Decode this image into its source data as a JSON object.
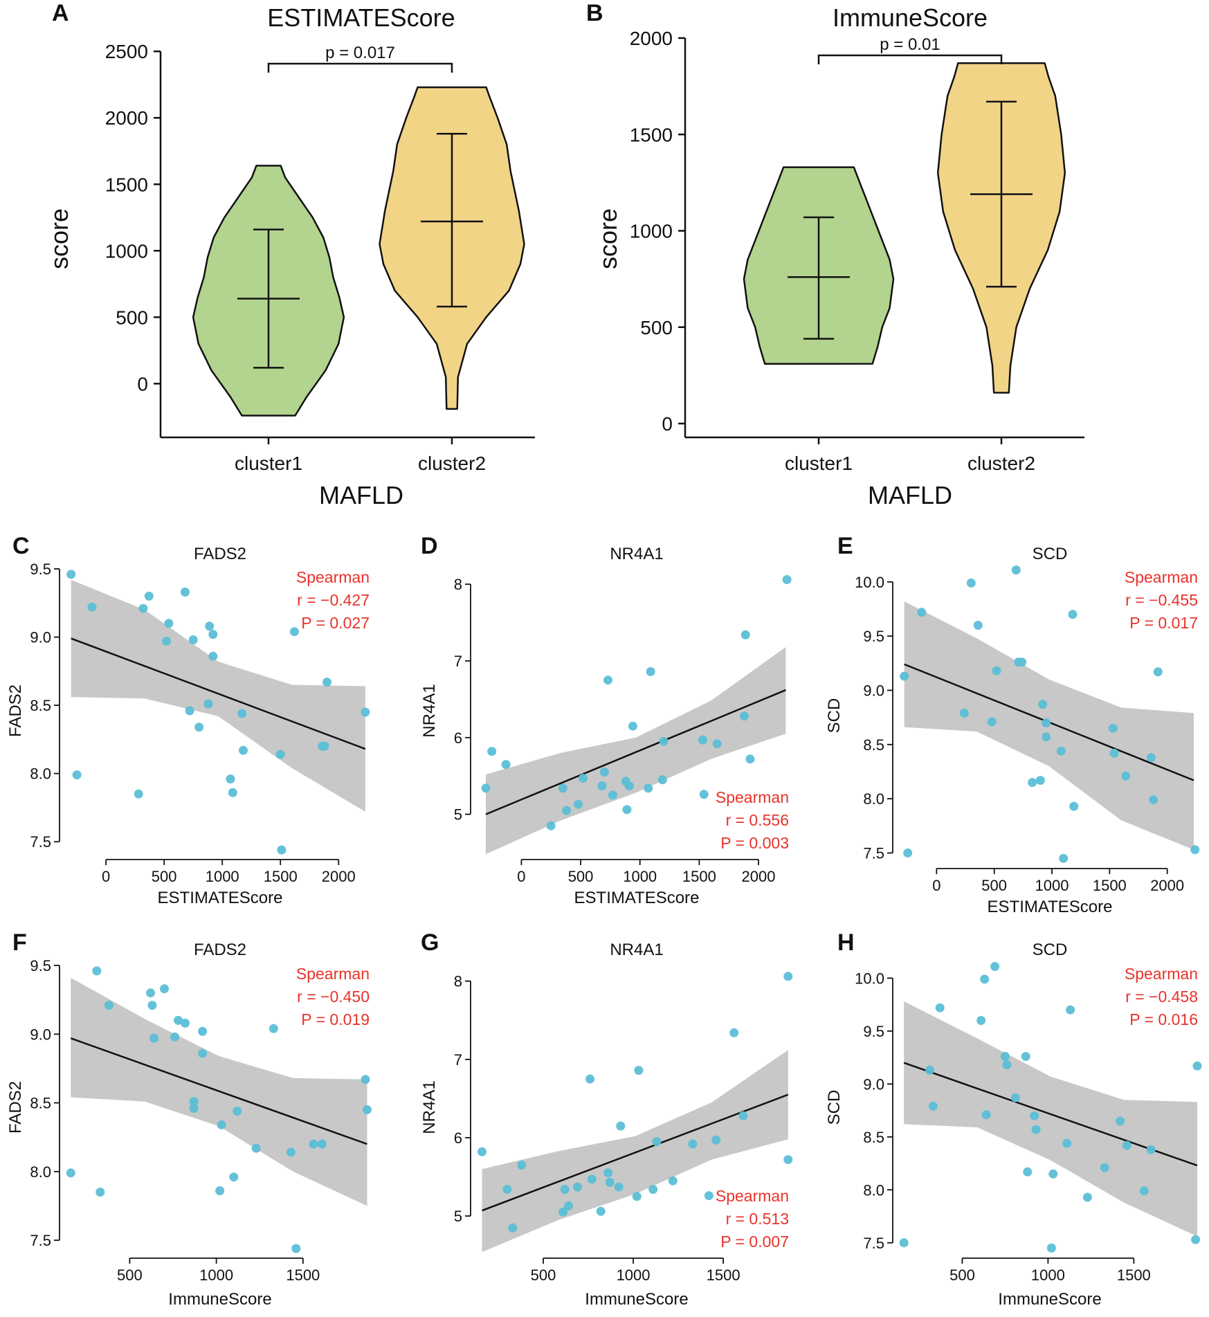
{
  "chart_data": [
    {
      "panel": "A",
      "type": "violin",
      "title": "ESTIMATEScore",
      "xlabel": "MAFLD",
      "ylabel": "score",
      "categories": [
        "cluster1",
        "cluster2"
      ],
      "ylim": [
        -300,
        2600
      ],
      "yticks": [
        0,
        500,
        1000,
        1500,
        2000,
        2500
      ],
      "colors": [
        "#b2d48e",
        "#f2d487"
      ],
      "groups": [
        {
          "name": "cluster1",
          "min": -240,
          "max": 1640,
          "mean": 640,
          "err_low": 120,
          "err_high": 1160,
          "profile": [
            [
              -240,
              0.35
            ],
            [
              -100,
              0.5
            ],
            [
              100,
              0.75
            ],
            [
              300,
              0.92
            ],
            [
              500,
              0.99
            ],
            [
              650,
              0.93
            ],
            [
              800,
              0.85
            ],
            [
              950,
              0.8
            ],
            [
              1100,
              0.72
            ],
            [
              1250,
              0.58
            ],
            [
              1400,
              0.4
            ],
            [
              1550,
              0.22
            ],
            [
              1640,
              0.16
            ]
          ]
        },
        {
          "name": "cluster2",
          "min": -190,
          "max": 2230,
          "mean": 1220,
          "err_low": 580,
          "err_high": 1880,
          "profile": [
            [
              -190,
              0.07
            ],
            [
              50,
              0.08
            ],
            [
              300,
              0.2
            ],
            [
              500,
              0.45
            ],
            [
              700,
              0.75
            ],
            [
              900,
              0.9
            ],
            [
              1050,
              0.95
            ],
            [
              1300,
              0.88
            ],
            [
              1600,
              0.77
            ],
            [
              1800,
              0.72
            ],
            [
              2000,
              0.6
            ],
            [
              2150,
              0.5
            ],
            [
              2230,
              0.45
            ]
          ]
        }
      ],
      "comparison": {
        "label": "p = 0.017",
        "between": [
          "cluster1",
          "cluster2"
        ]
      }
    },
    {
      "panel": "B",
      "type": "violin",
      "title": "ImmuneScore",
      "xlabel": "MAFLD",
      "ylabel": "score",
      "categories": [
        "cluster1",
        "cluster2"
      ],
      "ylim": [
        0,
        2000
      ],
      "yticks": [
        0,
        500,
        1000,
        1500,
        2000
      ],
      "colors": [
        "#b2d48e",
        "#f2d487"
      ],
      "groups": [
        {
          "name": "cluster1",
          "min": 310,
          "max": 1330,
          "mean": 760,
          "err_low": 440,
          "err_high": 1070,
          "profile": [
            [
              310,
              0.72
            ],
            [
              400,
              0.79
            ],
            [
              500,
              0.85
            ],
            [
              600,
              0.95
            ],
            [
              750,
              1.0
            ],
            [
              850,
              0.95
            ],
            [
              950,
              0.85
            ],
            [
              1050,
              0.75
            ],
            [
              1150,
              0.65
            ],
            [
              1250,
              0.55
            ],
            [
              1330,
              0.47
            ]
          ]
        },
        {
          "name": "cluster2",
          "min": 160,
          "max": 1870,
          "mean": 1190,
          "err_low": 710,
          "err_high": 1670,
          "profile": [
            [
              160,
              0.1
            ],
            [
              300,
              0.12
            ],
            [
              500,
              0.2
            ],
            [
              700,
              0.38
            ],
            [
              900,
              0.62
            ],
            [
              1100,
              0.78
            ],
            [
              1300,
              0.85
            ],
            [
              1500,
              0.8
            ],
            [
              1700,
              0.72
            ],
            [
              1800,
              0.63
            ],
            [
              1870,
              0.58
            ]
          ]
        }
      ],
      "comparison": {
        "label": "p = 0.01",
        "between": [
          "cluster1",
          "cluster2"
        ]
      }
    },
    {
      "panel": "C",
      "type": "scatter",
      "title": "FADS2",
      "xlabel": "ESTIMATEScore",
      "ylabel": "FADS2",
      "xlim": [
        -340,
        2290
      ],
      "ylim": [
        7.42,
        9.5
      ],
      "xticks": [
        0,
        500,
        1000,
        1500,
        2000
      ],
      "yticks": [
        7.5,
        8.0,
        8.5,
        9.0,
        9.5
      ],
      "ytick_labels": [
        "7.5",
        "8.0",
        "8.5",
        "9.0",
        "9.5"
      ],
      "stats": {
        "method": "Spearman",
        "r": "r = −0.427",
        "p": "P = 0.027",
        "position": "top-right"
      },
      "fit": {
        "x0": -300,
        "y0": 8.99,
        "x1": 2230,
        "y1": 8.18
      },
      "band": {
        "upper": [
          9.42,
          9.2,
          8.82,
          8.65,
          8.64
        ],
        "lower": [
          8.56,
          8.55,
          8.42,
          8.04,
          7.72
        ]
      },
      "points": [
        [
          -300,
          9.46
        ],
        [
          -250,
          7.99
        ],
        [
          -120,
          9.22
        ],
        [
          280,
          7.85
        ],
        [
          320,
          9.21
        ],
        [
          370,
          9.3
        ],
        [
          520,
          8.97
        ],
        [
          540,
          9.1
        ],
        [
          680,
          9.33
        ],
        [
          720,
          8.46
        ],
        [
          750,
          8.98
        ],
        [
          800,
          8.34
        ],
        [
          880,
          8.51
        ],
        [
          890,
          9.08
        ],
        [
          920,
          9.02
        ],
        [
          920,
          8.86
        ],
        [
          1070,
          7.96
        ],
        [
          1090,
          7.86
        ],
        [
          1170,
          8.44
        ],
        [
          1180,
          8.17
        ],
        [
          1500,
          8.14
        ],
        [
          1510,
          7.44
        ],
        [
          1620,
          9.04
        ],
        [
          1860,
          8.2
        ],
        [
          1880,
          8.2
        ],
        [
          1900,
          8.67
        ],
        [
          2230,
          8.45
        ]
      ]
    },
    {
      "panel": "D",
      "type": "scatter",
      "title": "NR4A1",
      "xlabel": "ESTIMATEScore",
      "ylabel": "NR4A1",
      "xlim": [
        -370,
        2280
      ],
      "ylim": [
        4.5,
        8.2
      ],
      "xticks": [
        0,
        500,
        1000,
        1500,
        2000
      ],
      "yticks": [
        5,
        6,
        7,
        8
      ],
      "ytick_labels": [
        "5",
        "6",
        "7",
        "8"
      ],
      "stats": {
        "method": "Spearman",
        "r": "r = 0.556",
        "p": "P = 0.003",
        "position": "bottom-right"
      },
      "fit": {
        "x0": -300,
        "y0": 5.0,
        "x1": 2230,
        "y1": 6.62
      },
      "band": {
        "upper": [
          5.52,
          5.8,
          6.0,
          6.48,
          7.18
        ],
        "lower": [
          4.48,
          4.92,
          5.28,
          5.72,
          6.05
        ]
      },
      "points": [
        [
          -300,
          5.34
        ],
        [
          -250,
          5.82
        ],
        [
          -130,
          5.65
        ],
        [
          250,
          4.85
        ],
        [
          350,
          5.34
        ],
        [
          380,
          5.05
        ],
        [
          480,
          5.13
        ],
        [
          520,
          5.47
        ],
        [
          680,
          5.37
        ],
        [
          700,
          5.55
        ],
        [
          730,
          6.75
        ],
        [
          770,
          5.25
        ],
        [
          880,
          5.43
        ],
        [
          890,
          5.06
        ],
        [
          910,
          5.37
        ],
        [
          940,
          6.15
        ],
        [
          1070,
          5.34
        ],
        [
          1090,
          6.86
        ],
        [
          1190,
          5.45
        ],
        [
          1200,
          5.95
        ],
        [
          1530,
          5.97
        ],
        [
          1540,
          5.26
        ],
        [
          1650,
          5.92
        ],
        [
          1880,
          6.28
        ],
        [
          1890,
          7.34
        ],
        [
          1930,
          5.72
        ],
        [
          2240,
          8.06
        ]
      ]
    },
    {
      "panel": "E",
      "type": "scatter",
      "title": "SCD",
      "xlabel": "ESTIMATEScore",
      "ylabel": "SCD",
      "xlim": [
        -320,
        2290
      ],
      "ylim": [
        7.42,
        10.12
      ],
      "xticks": [
        0,
        500,
        1000,
        1500,
        2000
      ],
      "yticks": [
        7.5,
        8.0,
        8.5,
        9.0,
        9.5,
        10.0
      ],
      "ytick_labels": [
        "7.5",
        "8.0",
        "8.5",
        "9.0",
        "9.5",
        "10.0"
      ],
      "stats": {
        "method": "Spearman",
        "r": "r = −0.455",
        "p": "P = 0.017",
        "position": "top-right"
      },
      "fit": {
        "x0": -280,
        "y0": 9.24,
        "x1": 2230,
        "y1": 8.17
      },
      "band": {
        "upper": [
          9.82,
          9.48,
          9.1,
          8.84,
          8.79
        ],
        "lower": [
          8.66,
          8.62,
          8.3,
          7.8,
          7.53
        ]
      },
      "points": [
        [
          -280,
          9.13
        ],
        [
          -250,
          7.5
        ],
        [
          -130,
          9.72
        ],
        [
          240,
          8.79
        ],
        [
          300,
          9.99
        ],
        [
          360,
          9.6
        ],
        [
          480,
          8.71
        ],
        [
          520,
          9.18
        ],
        [
          690,
          10.11
        ],
        [
          710,
          9.26
        ],
        [
          740,
          9.26
        ],
        [
          830,
          8.15
        ],
        [
          900,
          8.17
        ],
        [
          920,
          8.87
        ],
        [
          950,
          8.57
        ],
        [
          950,
          8.7
        ],
        [
          1080,
          8.44
        ],
        [
          1100,
          7.45
        ],
        [
          1180,
          9.7
        ],
        [
          1190,
          7.93
        ],
        [
          1530,
          8.65
        ],
        [
          1540,
          8.42
        ],
        [
          1640,
          8.21
        ],
        [
          1860,
          8.38
        ],
        [
          1880,
          7.99
        ],
        [
          1920,
          9.17
        ],
        [
          2240,
          7.53
        ]
      ]
    },
    {
      "panel": "F",
      "type": "scatter",
      "title": "FADS2",
      "xlabel": "ImmuneScore",
      "ylabel": "FADS2",
      "xlim": [
        135,
        1900
      ],
      "ylim": [
        7.42,
        9.5
      ],
      "xticks": [
        500,
        1000,
        1500
      ],
      "yticks": [
        7.5,
        8.0,
        8.5,
        9.0,
        9.5
      ],
      "ytick_labels": [
        "7.5",
        "8.0",
        "8.5",
        "9.0",
        "9.5"
      ],
      "stats": {
        "method": "Spearman",
        "r": "r = −0.450",
        "p": "P = 0.019",
        "position": "top-right"
      },
      "fit": {
        "x0": 160,
        "y0": 8.97,
        "x1": 1870,
        "y1": 8.2
      },
      "band": {
        "upper": [
          9.41,
          9.11,
          8.84,
          8.68,
          8.67
        ],
        "lower": [
          8.54,
          8.51,
          8.33,
          8.0,
          7.75
        ]
      },
      "points": [
        [
          160,
          7.99
        ],
        [
          310,
          9.46
        ],
        [
          330,
          7.85
        ],
        [
          380,
          9.21
        ],
        [
          620,
          9.3
        ],
        [
          630,
          9.21
        ],
        [
          640,
          8.97
        ],
        [
          700,
          9.33
        ],
        [
          760,
          8.98
        ],
        [
          780,
          9.1
        ],
        [
          820,
          9.08
        ],
        [
          870,
          8.51
        ],
        [
          870,
          8.46
        ],
        [
          920,
          8.86
        ],
        [
          920,
          9.02
        ],
        [
          1020,
          7.86
        ],
        [
          1030,
          8.34
        ],
        [
          1100,
          7.96
        ],
        [
          1120,
          8.44
        ],
        [
          1230,
          8.17
        ],
        [
          1330,
          9.04
        ],
        [
          1430,
          8.14
        ],
        [
          1460,
          7.44
        ],
        [
          1560,
          8.2
        ],
        [
          1610,
          8.2
        ],
        [
          1860,
          8.67
        ],
        [
          1870,
          8.45
        ]
      ]
    },
    {
      "panel": "G",
      "type": "scatter",
      "title": "NR4A1",
      "xlabel": "ImmuneScore",
      "ylabel": "NR4A1",
      "xlim": [
        135,
        1880
      ],
      "ylim": [
        4.55,
        8.2
      ],
      "xticks": [
        500,
        1000,
        1500
      ],
      "yticks": [
        5,
        6,
        7,
        8
      ],
      "ytick_labels": [
        "5",
        "6",
        "7",
        "8"
      ],
      "stats": {
        "method": "Spearman",
        "r": "r = 0.513",
        "p": "P = 0.007",
        "position": "bottom-right"
      },
      "fit": {
        "x0": 160,
        "y0": 5.07,
        "x1": 1860,
        "y1": 6.55
      },
      "band": {
        "upper": [
          5.6,
          5.83,
          6.02,
          6.45,
          7.12
        ],
        "lower": [
          4.54,
          4.95,
          5.28,
          5.72,
          5.98
        ]
      },
      "points": [
        [
          160,
          5.82
        ],
        [
          300,
          5.34
        ],
        [
          330,
          4.85
        ],
        [
          380,
          5.65
        ],
        [
          610,
          5.05
        ],
        [
          620,
          5.34
        ],
        [
          640,
          5.13
        ],
        [
          690,
          5.37
        ],
        [
          760,
          6.75
        ],
        [
          770,
          5.47
        ],
        [
          820,
          5.06
        ],
        [
          860,
          5.55
        ],
        [
          870,
          5.43
        ],
        [
          920,
          5.37
        ],
        [
          930,
          6.15
        ],
        [
          1020,
          5.25
        ],
        [
          1030,
          6.86
        ],
        [
          1110,
          5.34
        ],
        [
          1130,
          5.95
        ],
        [
          1220,
          5.45
        ],
        [
          1330,
          5.92
        ],
        [
          1420,
          5.26
        ],
        [
          1460,
          5.97
        ],
        [
          1560,
          7.34
        ],
        [
          1610,
          6.28
        ],
        [
          1860,
          5.72
        ],
        [
          1860,
          8.06
        ]
      ]
    },
    {
      "panel": "H",
      "type": "scatter",
      "title": "SCD",
      "xlabel": "ImmuneScore",
      "ylabel": "SCD",
      "xlim": [
        135,
        1890
      ],
      "ylim": [
        7.42,
        10.12
      ],
      "xticks": [
        500,
        1000,
        1500
      ],
      "yticks": [
        7.5,
        8.0,
        8.5,
        9.0,
        9.5,
        10.0
      ],
      "ytick_labels": [
        "7.5",
        "8.0",
        "8.5",
        "9.0",
        "9.5",
        "10.0"
      ],
      "stats": {
        "method": "Spearman",
        "r": "r = −0.458",
        "p": "P = 0.016",
        "position": "top-right"
      },
      "fit": {
        "x0": 160,
        "y0": 9.2,
        "x1": 1870,
        "y1": 8.23
      },
      "band": {
        "upper": [
          9.78,
          9.43,
          9.07,
          8.85,
          8.83
        ],
        "lower": [
          8.62,
          8.59,
          8.28,
          7.88,
          7.56
        ]
      },
      "points": [
        [
          160,
          7.5
        ],
        [
          310,
          9.13
        ],
        [
          330,
          8.79
        ],
        [
          370,
          9.72
        ],
        [
          610,
          9.6
        ],
        [
          630,
          9.99
        ],
        [
          640,
          8.71
        ],
        [
          690,
          10.11
        ],
        [
          750,
          9.26
        ],
        [
          760,
          9.18
        ],
        [
          810,
          8.87
        ],
        [
          870,
          9.26
        ],
        [
          880,
          8.17
        ],
        [
          920,
          8.7
        ],
        [
          930,
          8.57
        ],
        [
          1020,
          7.45
        ],
        [
          1030,
          8.15
        ],
        [
          1110,
          8.44
        ],
        [
          1130,
          9.7
        ],
        [
          1230,
          7.93
        ],
        [
          1330,
          8.21
        ],
        [
          1420,
          8.65
        ],
        [
          1460,
          8.42
        ],
        [
          1560,
          7.99
        ],
        [
          1600,
          8.38
        ],
        [
          1860,
          7.53
        ],
        [
          1870,
          9.17
        ]
      ]
    }
  ]
}
